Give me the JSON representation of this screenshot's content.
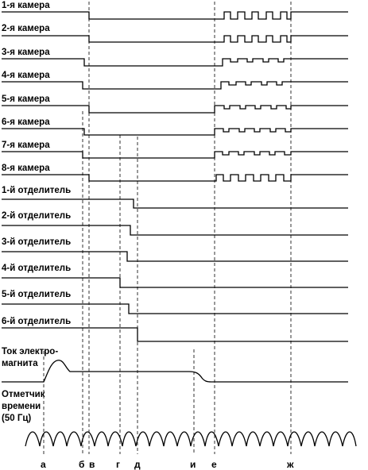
{
  "chambers": [
    {
      "label": "1-я камера"
    },
    {
      "label": "2-я камера"
    },
    {
      "label": "3-я камера"
    },
    {
      "label": "4-я камера"
    },
    {
      "label": "5-я камера"
    },
    {
      "label": "6-я камера"
    },
    {
      "label": "7-я камера"
    },
    {
      "label": "8-я камера"
    }
  ],
  "separators": [
    {
      "label": "1-й отделитель"
    },
    {
      "label": "2-й отделитель"
    },
    {
      "label": "3-й отделитель"
    },
    {
      "label": "4-й отделитель"
    },
    {
      "label": "5-й отделитель"
    },
    {
      "label": "6-й отделитель"
    }
  ],
  "magnet": {
    "label_line1": "Ток электро-",
    "label_line2": "магнита"
  },
  "timer": {
    "label_line1": "Отметчик",
    "label_line2": "времени",
    "label_line3": "(50 Гц)"
  },
  "markers": [
    "а",
    "б",
    "в",
    "г",
    "д",
    "и",
    "е",
    "ж"
  ]
}
